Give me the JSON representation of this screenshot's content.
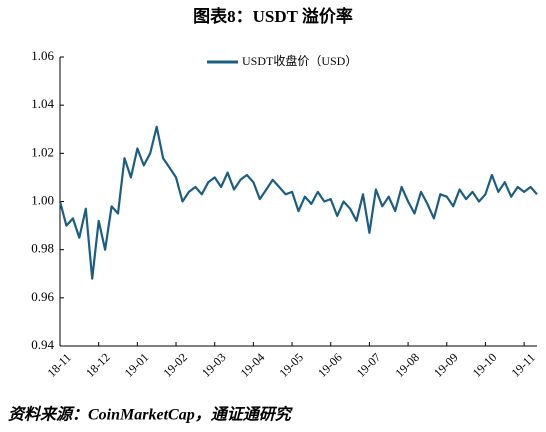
{
  "chart_data": {
    "type": "line",
    "title": "图表8：USDT 溢价率",
    "source": "资料来源：CoinMarketCap，通证通研究",
    "categories": [
      "18-11",
      null,
      null,
      null,
      null,
      null,
      "18-12",
      null,
      null,
      null,
      null,
      null,
      "19-01",
      null,
      null,
      null,
      null,
      null,
      "19-02",
      null,
      null,
      null,
      null,
      null,
      "19-03",
      null,
      null,
      null,
      null,
      null,
      "19-04",
      null,
      null,
      null,
      null,
      null,
      "19-05",
      null,
      null,
      null,
      null,
      null,
      "19-06",
      null,
      null,
      null,
      null,
      null,
      "19-07",
      null,
      null,
      null,
      null,
      null,
      "19-08",
      null,
      null,
      null,
      null,
      null,
      "19-09",
      null,
      null,
      null,
      null,
      null,
      "19-10",
      null,
      null,
      null,
      null,
      null,
      "19-11",
      null,
      null
    ],
    "series": [
      {
        "name": "USDT收盘价（USD）",
        "color": "#1b5e85",
        "values": [
          1.0,
          0.99,
          0.993,
          0.985,
          0.997,
          0.968,
          0.992,
          0.98,
          0.998,
          0.995,
          1.018,
          1.01,
          1.022,
          1.015,
          1.02,
          1.031,
          1.018,
          1.014,
          1.01,
          1.0,
          1.004,
          1.006,
          1.003,
          1.008,
          1.01,
          1.006,
          1.012,
          1.005,
          1.009,
          1.011,
          1.008,
          1.001,
          1.005,
          1.009,
          1.006,
          1.003,
          1.004,
          0.996,
          1.002,
          0.999,
          1.004,
          1.0,
          1.001,
          0.994,
          1.0,
          0.997,
          0.992,
          1.003,
          0.987,
          1.005,
          0.998,
          1.002,
          0.996,
          1.006,
          1.0,
          0.995,
          1.004,
          0.999,
          0.993,
          1.003,
          1.002,
          0.998,
          1.005,
          1.001,
          1.004,
          1.0,
          1.003,
          1.011,
          1.004,
          1.008,
          1.002,
          1.006,
          1.004,
          1.006,
          1.003
        ]
      }
    ],
    "ylim": [
      0.94,
      1.06
    ],
    "yticks": [
      0.94,
      0.96,
      0.98,
      {
        "value": 1.0,
        "label": "1.00"
      },
      1.02,
      1.04,
      1.06
    ],
    "legend": "top"
  }
}
